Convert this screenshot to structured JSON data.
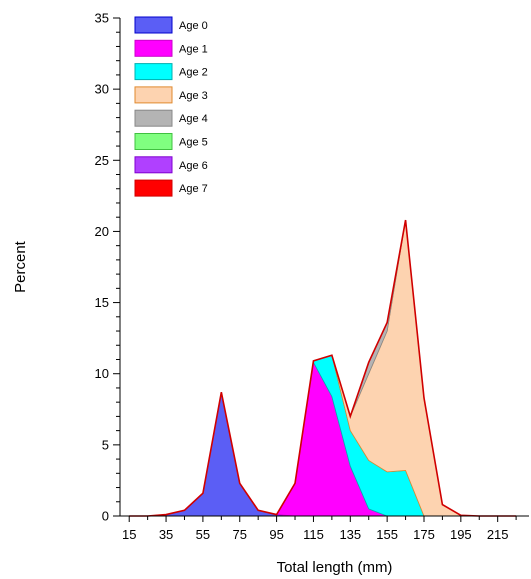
{
  "chart_data": {
    "type": "area",
    "stacked": true,
    "title": "",
    "xlabel": "Total length (mm)",
    "ylabel": "Percent",
    "xlim": [
      10,
      232
    ],
    "ylim": [
      0,
      35
    ],
    "x_ticks": [
      15,
      35,
      55,
      75,
      95,
      115,
      135,
      155,
      175,
      195,
      215
    ],
    "x_tick_labels": [
      "15",
      "35",
      "55",
      "75",
      "95",
      "115",
      "135",
      "155",
      "175",
      "195",
      "215"
    ],
    "y_ticks": [
      0,
      5,
      10,
      15,
      20,
      25,
      30,
      35
    ],
    "y_tick_labels": [
      "0",
      "5",
      "10",
      "15",
      "20",
      "25",
      "30",
      "35"
    ],
    "grid": false,
    "legend_position": "top-left",
    "x": [
      15,
      25,
      35,
      45,
      55,
      65,
      75,
      85,
      95,
      105,
      115,
      125,
      135,
      145,
      155,
      165,
      175,
      185,
      195,
      205,
      215,
      225
    ],
    "series": [
      {
        "name": "Age 0",
        "color": "#5b5ef5",
        "edge": "#0000cc",
        "values": [
          0,
          0,
          0.1,
          0.4,
          1.6,
          8.7,
          2.3,
          0.4,
          0.1,
          0,
          0,
          0,
          0,
          0,
          0,
          0,
          0,
          0,
          0,
          0,
          0,
          0
        ]
      },
      {
        "name": "Age 1",
        "color": "#ff00ff",
        "edge": "#cc00cc",
        "values": [
          0,
          0,
          0,
          0,
          0,
          0,
          0,
          0,
          0,
          2.3,
          10.8,
          8.4,
          3.5,
          0.5,
          0,
          0,
          0,
          0,
          0,
          0,
          0,
          0
        ]
      },
      {
        "name": "Age 2",
        "color": "#00ffff",
        "edge": "#00b0b0",
        "values": [
          0,
          0,
          0,
          0,
          0,
          0,
          0,
          0,
          0,
          0,
          0.1,
          2.9,
          2.5,
          3.4,
          3.1,
          3.2,
          0,
          0,
          0,
          0,
          0,
          0
        ]
      },
      {
        "name": "Age 3",
        "color": "#fdd3b0",
        "edge": "#e08a2e",
        "values": [
          0,
          0,
          0,
          0,
          0,
          0,
          0,
          0,
          0,
          0,
          0,
          0,
          1.0,
          6.1,
          9.9,
          17.6,
          8.3,
          0.8,
          0.05,
          0,
          0,
          0
        ]
      },
      {
        "name": "Age 4",
        "color": "#b4b4b4",
        "edge": "#888888",
        "values": [
          0,
          0,
          0,
          0,
          0,
          0,
          0,
          0,
          0,
          0,
          0,
          0,
          0,
          0.8,
          0.6,
          0,
          0,
          0,
          0,
          0,
          0,
          0
        ]
      },
      {
        "name": "Age 5",
        "color": "#80ff80",
        "edge": "#40c040",
        "values": [
          0,
          0,
          0,
          0,
          0,
          0,
          0,
          0,
          0,
          0,
          0,
          0,
          0,
          0,
          0,
          0,
          0,
          0,
          0,
          0,
          0,
          0
        ]
      },
      {
        "name": "Age 6",
        "color": "#b040ff",
        "edge": "#8000d0",
        "values": [
          0,
          0,
          0,
          0,
          0,
          0,
          0,
          0,
          0,
          0,
          0,
          0,
          0,
          0,
          0,
          0,
          0,
          0,
          0,
          0,
          0,
          0
        ]
      },
      {
        "name": "Age 7",
        "color": "#ff0000",
        "edge": "#d00000",
        "values": [
          0,
          0,
          0,
          0,
          0,
          0,
          0,
          0,
          0,
          0,
          0,
          0,
          0,
          0,
          0,
          0,
          0,
          0,
          0,
          0,
          0,
          0
        ]
      }
    ],
    "outline_color": "#d00000"
  }
}
